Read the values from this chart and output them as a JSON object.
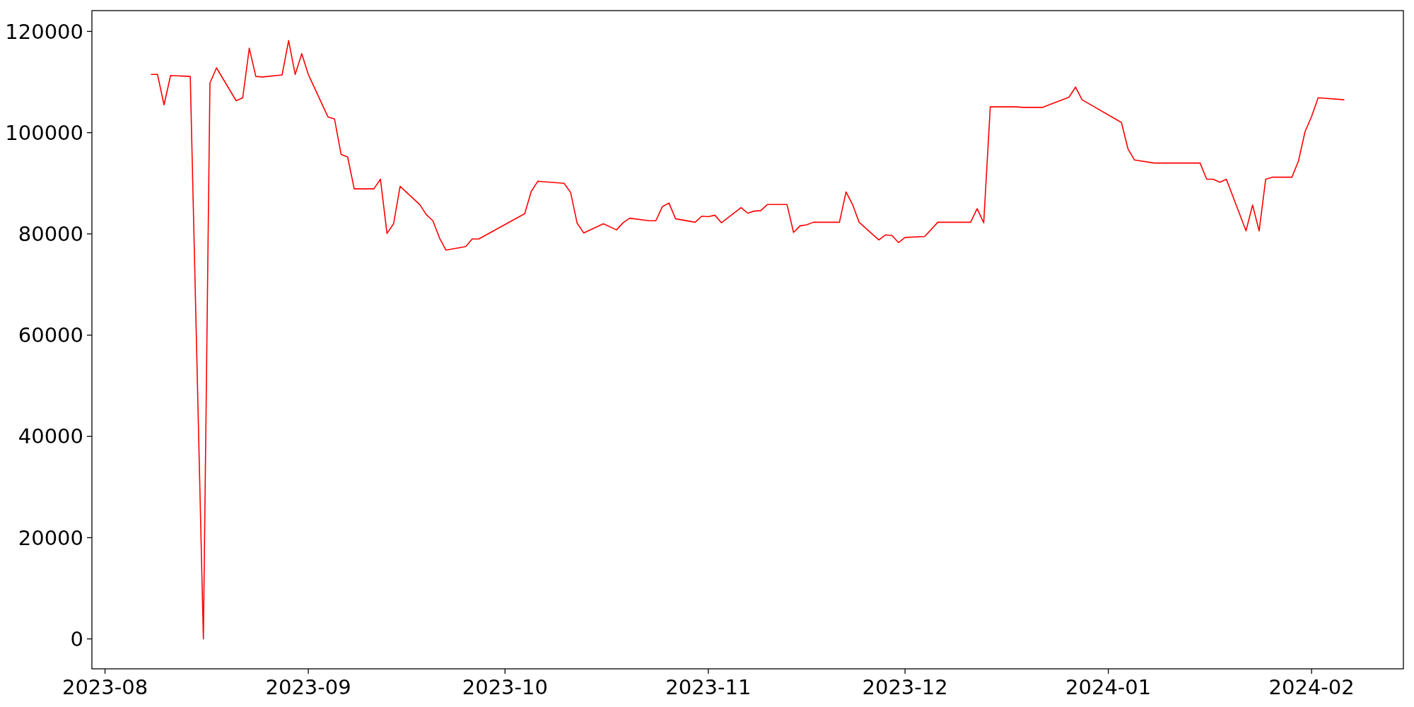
{
  "chart_data": {
    "type": "line",
    "x": [
      "2023-08-08",
      "2023-08-09",
      "2023-08-10",
      "2023-08-11",
      "2023-08-14",
      "2023-08-16",
      "2023-08-17",
      "2023-08-18",
      "2023-08-21",
      "2023-08-22",
      "2023-08-23",
      "2023-08-24",
      "2023-08-25",
      "2023-08-28",
      "2023-08-29",
      "2023-08-30",
      "2023-08-31",
      "2023-09-01",
      "2023-09-04",
      "2023-09-05",
      "2023-09-06",
      "2023-09-07",
      "2023-09-08",
      "2023-09-11",
      "2023-09-12",
      "2023-09-13",
      "2023-09-14",
      "2023-09-15",
      "2023-09-18",
      "2023-09-19",
      "2023-09-20",
      "2023-09-21",
      "2023-09-22",
      "2023-09-25",
      "2023-09-26",
      "2023-09-27",
      "2023-10-04",
      "2023-10-05",
      "2023-10-06",
      "2023-10-10",
      "2023-10-11",
      "2023-10-12",
      "2023-10-13",
      "2023-10-16",
      "2023-10-18",
      "2023-10-19",
      "2023-10-20",
      "2023-10-23",
      "2023-10-24",
      "2023-10-25",
      "2023-10-26",
      "2023-10-27",
      "2023-10-30",
      "2023-10-31",
      "2023-11-01",
      "2023-11-02",
      "2023-11-03",
      "2023-11-06",
      "2023-11-07",
      "2023-11-08",
      "2023-11-09",
      "2023-11-10",
      "2023-11-13",
      "2023-11-14",
      "2023-11-15",
      "2023-11-16",
      "2023-11-17",
      "2023-11-21",
      "2023-11-22",
      "2023-11-23",
      "2023-11-24",
      "2023-11-27",
      "2023-11-28",
      "2023-11-29",
      "2023-11-30",
      "2023-12-01",
      "2023-12-04",
      "2023-12-06",
      "2023-12-11",
      "2023-12-12",
      "2023-12-13",
      "2023-12-14",
      "2023-12-18",
      "2023-12-19",
      "2023-12-22",
      "2023-12-26",
      "2023-12-27",
      "2023-12-28",
      "2024-01-03",
      "2024-01-04",
      "2024-01-05",
      "2024-01-08",
      "2024-01-15",
      "2024-01-16",
      "2024-01-17",
      "2024-01-18",
      "2024-01-19",
      "2024-01-22",
      "2024-01-23",
      "2024-01-24",
      "2024-01-25",
      "2024-01-26",
      "2024-01-29",
      "2024-01-30",
      "2024-01-31",
      "2024-02-01",
      "2024-02-02",
      "2024-02-06"
    ],
    "series": [
      {
        "color": "#ff0000",
        "values": [
          111500,
          111500,
          105500,
          111300,
          111100,
          0,
          109800,
          112800,
          106300,
          106900,
          116700,
          111100,
          111000,
          111400,
          118200,
          111500,
          115600,
          111500,
          103100,
          102700,
          95700,
          95200,
          88900,
          88900,
          90800,
          80100,
          82000,
          89400,
          85800,
          83800,
          82600,
          79200,
          76800,
          77500,
          79000,
          79000,
          84000,
          88400,
          90400,
          90000,
          88200,
          82100,
          80200,
          82000,
          80800,
          82200,
          83100,
          82600,
          82600,
          85400,
          86100,
          83000,
          82300,
          83500,
          83400,
          83700,
          82200,
          85200,
          84100,
          84500,
          84600,
          85800,
          85800,
          80300,
          81600,
          81800,
          82300,
          82300,
          88300,
          85800,
          82300,
          78800,
          79800,
          79700,
          78300,
          79300,
          79500,
          82300,
          82300,
          85000,
          82200,
          105100,
          105100,
          105000,
          105000,
          107000,
          109000,
          106500,
          102000,
          96800,
          94600,
          94000,
          94000,
          90800,
          90800,
          90200,
          90800,
          80600,
          85700,
          80600,
          90800,
          91200,
          91200,
          94400,
          100200,
          103200,
          106900,
          106500
        ]
      }
    ],
    "xlim": [
      "2023-07-30",
      "2024-02-15"
    ],
    "xticks": [
      "2023-08",
      "2023-09",
      "2023-10",
      "2023-11",
      "2023-12",
      "2024-01",
      "2024-02"
    ],
    "ylim": [
      -5910,
      124110
    ],
    "yticks": [
      0,
      20000,
      40000,
      60000,
      80000,
      100000,
      120000
    ],
    "grid": false,
    "marker": "none",
    "line_style": "solid"
  }
}
